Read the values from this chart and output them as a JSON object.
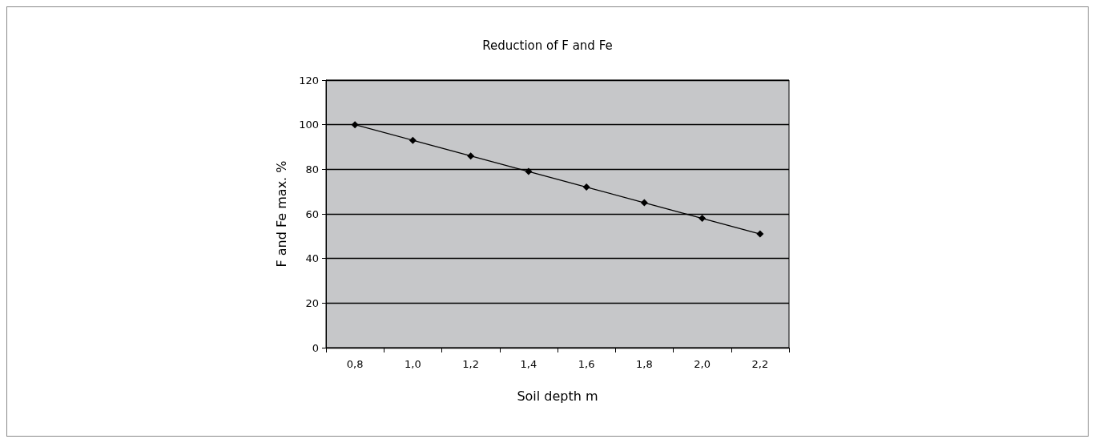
{
  "chart_data": {
    "type": "line",
    "title": "Reduction of F and Fe",
    "xlabel": "Soil depth m",
    "ylabel": "F and Fe max. %",
    "categories": [
      "0,8",
      "1,0",
      "1,2",
      "1,4",
      "1,6",
      "1,8",
      "2,0",
      "2,2"
    ],
    "series": [
      {
        "color": "#000000",
        "values": [
          100,
          93,
          86,
          79,
          72,
          65,
          58,
          51
        ]
      }
    ],
    "ylim": [
      0,
      120
    ],
    "yticks": [
      0,
      20,
      40,
      60,
      80,
      100,
      120
    ],
    "grid": "y",
    "marker": "diamond",
    "line_style": "solid"
  }
}
